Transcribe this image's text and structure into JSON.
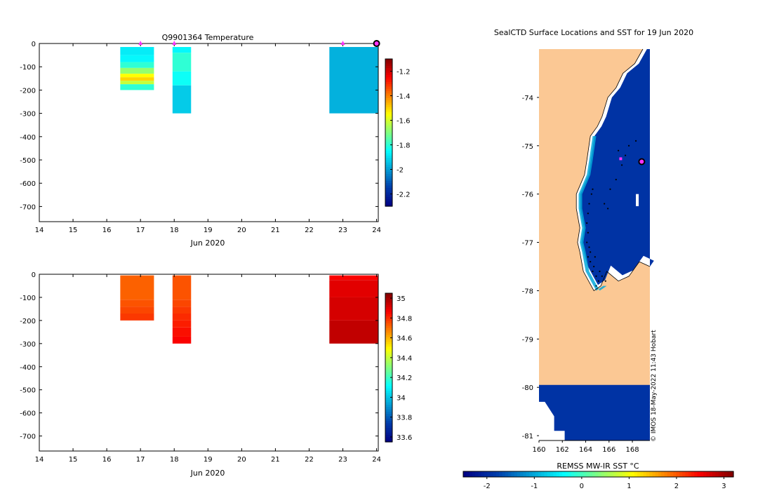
{
  "chart_data": [
    {
      "type": "heatmap",
      "panel": "temperature-section",
      "title": "Q9901364  Temperature",
      "xlabel": "Jun 2020",
      "x_ticks": [
        14,
        15,
        16,
        17,
        18,
        19,
        20,
        21,
        22,
        23,
        24
      ],
      "y_ticks": [
        0,
        -100,
        -200,
        -300,
        -400,
        -500,
        -600,
        -700
      ],
      "xlim": [
        14,
        24.05
      ],
      "ylim": [
        -765,
        0
      ],
      "colorbar": {
        "ticks": [
          -1.2,
          -1.4,
          -1.6,
          -1.8,
          -2,
          -2.2
        ],
        "range": [
          -2.3,
          -1.1
        ]
      },
      "profile_markers_x": [
        17.0,
        18.0,
        23.0
      ],
      "current_profile_x": 24.0,
      "profiles": [
        {
          "x_start": 16.4,
          "x_end": 17.4,
          "bins": [
            {
              "top": -15,
              "bottom": -50,
              "value": -1.88
            },
            {
              "top": -50,
              "bottom": -80,
              "value": -1.86
            },
            {
              "top": -80,
              "bottom": -105,
              "value": -1.8
            },
            {
              "top": -105,
              "bottom": -130,
              "value": -1.68
            },
            {
              "top": -130,
              "bottom": -145,
              "value": -1.55
            },
            {
              "top": -145,
              "bottom": -160,
              "value": -1.5
            },
            {
              "top": -160,
              "bottom": -175,
              "value": -1.62
            },
            {
              "top": -175,
              "bottom": -200,
              "value": -1.8
            }
          ]
        },
        {
          "x_start": 17.95,
          "x_end": 18.5,
          "bins": [
            {
              "top": -15,
              "bottom": -40,
              "value": -1.86
            },
            {
              "top": -40,
              "bottom": -120,
              "value": -1.8
            },
            {
              "top": -120,
              "bottom": -180,
              "value": -1.84
            },
            {
              "top": -180,
              "bottom": -300,
              "value": -1.93
            }
          ]
        },
        {
          "x_start": 22.6,
          "x_end": 24.05,
          "bins": [
            {
              "top": -15,
              "bottom": -300,
              "value": -1.97
            }
          ]
        }
      ]
    },
    {
      "type": "heatmap",
      "panel": "salinity-section",
      "title": "",
      "xlabel": "Jun 2020",
      "x_ticks": [
        14,
        15,
        16,
        17,
        18,
        19,
        20,
        21,
        22,
        23,
        24
      ],
      "y_ticks": [
        0,
        -100,
        -200,
        -300,
        -400,
        -500,
        -600,
        -700
      ],
      "xlim": [
        14,
        24.05
      ],
      "ylim": [
        -765,
        0
      ],
      "colorbar": {
        "ticks": [
          35,
          34.8,
          34.6,
          34.4,
          34.2,
          34,
          33.8,
          33.6
        ],
        "range": [
          33.55,
          35.05
        ]
      },
      "profiles": [
        {
          "x_start": 16.4,
          "x_end": 17.4,
          "bins": [
            {
              "top": -5,
              "bottom": -110,
              "value": 34.72
            },
            {
              "top": -110,
              "bottom": -140,
              "value": 34.74
            },
            {
              "top": -140,
              "bottom": -170,
              "value": 34.76
            },
            {
              "top": -170,
              "bottom": -200,
              "value": 34.78
            }
          ]
        },
        {
          "x_start": 17.95,
          "x_end": 18.5,
          "bins": [
            {
              "top": -5,
              "bottom": -110,
              "value": 34.74
            },
            {
              "top": -110,
              "bottom": -140,
              "value": 34.76
            },
            {
              "top": -140,
              "bottom": -170,
              "value": 34.78
            },
            {
              "top": -170,
              "bottom": -200,
              "value": 34.8
            },
            {
              "top": -200,
              "bottom": -230,
              "value": 34.82
            },
            {
              "top": -230,
              "bottom": -270,
              "value": 34.84
            },
            {
              "top": -270,
              "bottom": -300,
              "value": 34.86
            }
          ]
        },
        {
          "x_start": 22.6,
          "x_end": 24.05,
          "bins": [
            {
              "top": -5,
              "bottom": -25,
              "value": 34.86
            },
            {
              "top": -25,
              "bottom": -100,
              "value": 34.9
            },
            {
              "top": -100,
              "bottom": -200,
              "value": 34.92
            },
            {
              "top": -200,
              "bottom": -300,
              "value": 34.95
            }
          ]
        }
      ]
    },
    {
      "type": "map",
      "panel": "sst-map",
      "title": "SealCTD Surface Locations and SST for 19 Jun 2020",
      "colorbar_label": "REMSS MW-IR SST °C",
      "colorbar": {
        "ticks": [
          -2,
          -1,
          0,
          1,
          2,
          3
        ],
        "range": [
          -2.5,
          3.2
        ]
      },
      "x_ticks": [
        160,
        162,
        164,
        166,
        168
      ],
      "y_ticks": [
        -74,
        -75,
        -76,
        -77,
        -78,
        -79,
        -80,
        -81
      ],
      "lon_range": [
        160,
        169.5
      ],
      "lat_range": [
        -73.0,
        -81.1
      ],
      "ice_sst": -1.9,
      "coastline_lonlat": [
        [
          168.9,
          -73.0
        ],
        [
          168.2,
          -73.3
        ],
        [
          167.2,
          -73.5
        ],
        [
          166.6,
          -73.8
        ],
        [
          165.9,
          -74.0
        ],
        [
          165.4,
          -74.4
        ],
        [
          165.0,
          -74.6
        ],
        [
          164.4,
          -74.8
        ],
        [
          164.1,
          -75.3
        ],
        [
          163.9,
          -75.6
        ],
        [
          163.2,
          -76.0
        ],
        [
          163.2,
          -76.3
        ],
        [
          163.5,
          -76.7
        ],
        [
          163.3,
          -77.0
        ],
        [
          163.5,
          -77.2
        ],
        [
          163.8,
          -77.6
        ],
        [
          164.7,
          -78.0
        ],
        [
          165.3,
          -77.9
        ],
        [
          165.8,
          -77.6
        ],
        [
          166.8,
          -77.8
        ],
        [
          167.7,
          -77.7
        ],
        [
          168.6,
          -77.4
        ],
        [
          169.5,
          -77.5
        ]
      ],
      "track_points": [
        [
          164.6,
          -75.9
        ],
        [
          164.5,
          -76.0
        ],
        [
          164.3,
          -76.2
        ],
        [
          164.2,
          -76.4
        ],
        [
          164.1,
          -76.6
        ],
        [
          164.2,
          -76.8
        ],
        [
          164.1,
          -77.0
        ],
        [
          164.3,
          -77.1
        ],
        [
          164.4,
          -77.2
        ],
        [
          164.2,
          -77.3
        ],
        [
          164.4,
          -77.4
        ],
        [
          164.7,
          -77.5
        ],
        [
          164.6,
          -77.6
        ],
        [
          164.9,
          -77.7
        ],
        [
          165.2,
          -77.6
        ],
        [
          165.4,
          -77.7
        ],
        [
          165.1,
          -77.8
        ],
        [
          164.9,
          -77.9
        ],
        [
          165.6,
          -76.2
        ],
        [
          166.1,
          -75.9
        ],
        [
          166.6,
          -75.7
        ],
        [
          167.1,
          -75.4
        ],
        [
          167.4,
          -75.2
        ],
        [
          167.7,
          -75.0
        ],
        [
          168.3,
          -74.9
        ],
        [
          166.8,
          -75.1
        ],
        [
          165.9,
          -76.3
        ],
        [
          164.8,
          -77.3
        ],
        [
          165.7,
          -77.8
        ]
      ],
      "previous_position": [
        167.0,
        -75.27
      ],
      "current_position": [
        168.8,
        -75.33
      ],
      "credit": "© IMOS 18-May-2022 11:43 Hobart"
    }
  ],
  "colors": {
    "land": "#fbc894",
    "no_data": "#ffffff",
    "marker": "#ff33ff",
    "outline": "#000000"
  }
}
